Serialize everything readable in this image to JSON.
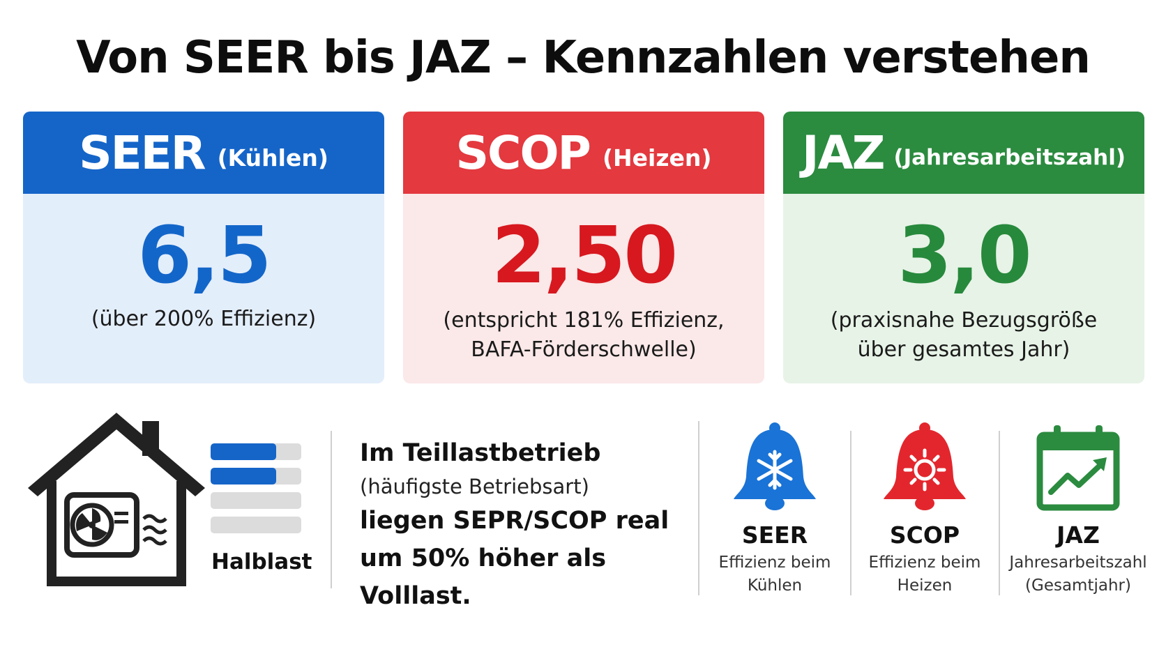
{
  "title": "Von SEER bis JAZ – Kennzahlen verstehen",
  "cards": [
    {
      "abbr": "SEER",
      "sub": "(Kühlen)",
      "value": "6,5",
      "note": [
        "(über 200% Effizienz)"
      ],
      "color": "#1565c8"
    },
    {
      "abbr": "SCOP",
      "sub": "(Heizen)",
      "value": "2,50",
      "note": [
        "(entspricht 181% Effizienz,",
        "BAFA-Förderschwelle)"
      ],
      "color": "#e3393f"
    },
    {
      "abbr": "JAZ",
      "sub": "(Jahresarbeitszahl)",
      "value": "3,0",
      "note": [
        "(praxisnahe Bezugsgröße",
        "über gesamtes Jahr)"
      ],
      "color": "#2b8b3f"
    }
  ],
  "load": {
    "label": "Halblast",
    "levels": [
      0.72,
      0.72,
      0,
      0
    ],
    "icon": "house-heatpump-icon"
  },
  "teillast": {
    "line1": "Im Teillastbetrieb",
    "line2": "(häufigste Betriebsart)",
    "line3": "liegen SEPR/SCOP real",
    "line4": "um 50% höher als Volllast."
  },
  "legend": [
    {
      "label": "SEER",
      "desc": [
        "Effizienz beim",
        "Kühlen"
      ],
      "icon": "bell-snowflake-icon",
      "color": "#1a73d6"
    },
    {
      "label": "SCOP",
      "desc": [
        "Effizienz beim",
        "Heizen"
      ],
      "icon": "bell-sun-icon",
      "color": "#e3262d"
    },
    {
      "label": "JAZ",
      "desc": [
        "Jahresarbeitszahl",
        "(Gesamtjahr)"
      ],
      "icon": "calendar-trend-icon",
      "color": "#2b8b3f"
    }
  ]
}
